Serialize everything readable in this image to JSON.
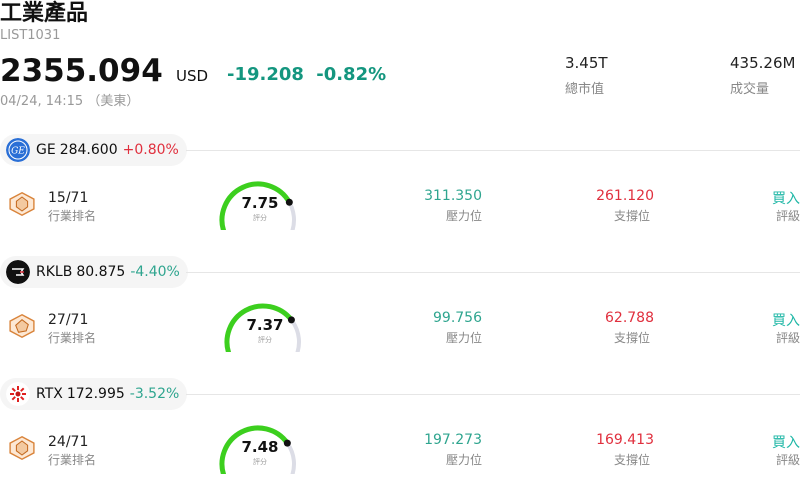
{
  "header": {
    "title": "工業產品",
    "code": "LIST1031",
    "price": "2355.094",
    "currency": "USD",
    "change": "-19.208",
    "change_pct": "-0.82%",
    "timestamp": "04/24, 14:15 （美東）",
    "market_cap_value": "3.45T",
    "market_cap_label": "總市值",
    "volume_value": "435.26M",
    "volume_label": "成交量"
  },
  "colors": {
    "up": "#e0303e",
    "down": "#14967f",
    "green": "#2fa58f",
    "red": "#e0303e",
    "rating": "#1fb7a6",
    "gauge_arc": "#3ccf1e",
    "gauge_track": "#dcdde6"
  },
  "labels": {
    "rank": "行業排名",
    "resistance": "壓力位",
    "support": "支撐位",
    "rating": "評級",
    "score": "評分"
  },
  "stocks": [
    {
      "symbol": "GE",
      "price": "284.600",
      "change": "+0.80%",
      "direction": "up",
      "logo_icon": "ge-logo-icon",
      "rank": "15/71",
      "score": "7.75",
      "score_value": 7.75,
      "resistance": "311.350",
      "support": "261.120",
      "rating": "買入"
    },
    {
      "symbol": "RKLB",
      "price": "80.875",
      "change": "-4.40%",
      "direction": "down",
      "logo_icon": "rklb-logo-icon",
      "rank": "27/71",
      "score": "7.37",
      "score_value": 7.37,
      "resistance": "99.756",
      "support": "62.788",
      "rating": "買入"
    },
    {
      "symbol": "RTX",
      "price": "172.995",
      "change": "-3.52%",
      "direction": "down",
      "logo_icon": "rtx-logo-icon",
      "rank": "24/71",
      "score": "7.48",
      "score_value": 7.48,
      "resistance": "197.273",
      "support": "169.413",
      "rating": "買入"
    }
  ]
}
